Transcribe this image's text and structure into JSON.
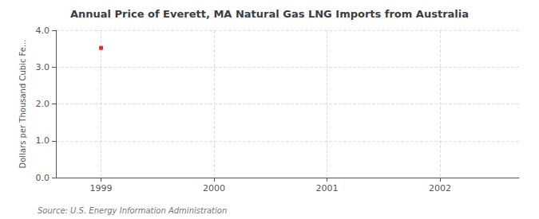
{
  "chart_data": {
    "type": "scatter",
    "title": "Annual Price of Everett, MA Natural Gas LNG Imports from Australia",
    "ylabel": "Dollars per Thousand Cubic Fe...",
    "source": "Source: U.S. Energy Information Administration",
    "x": [
      1999
    ],
    "values": [
      3.52
    ],
    "color": "#cc0000",
    "marker": "square",
    "xlim": [
      1998.6,
      2002.7
    ],
    "xticks": [
      1999,
      2000,
      2001,
      2002
    ],
    "ylim": [
      0.0,
      4.0
    ],
    "yticks": [
      {
        "value": 0.0,
        "label": "0.0"
      },
      {
        "value": 1.0,
        "label": "1.0"
      },
      {
        "value": 2.0,
        "label": "2.0"
      },
      {
        "value": 3.0,
        "label": "3.0"
      },
      {
        "value": 4.0,
        "label": "4.0"
      }
    ],
    "grid": true
  }
}
